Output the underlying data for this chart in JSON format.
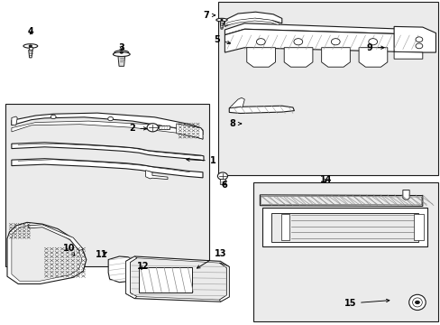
{
  "bg_color": "#ffffff",
  "box_fill": "#ebebeb",
  "line_color": "#1a1a1a",
  "lw_main": 0.8,
  "lw_thin": 0.4,
  "label_fs": 7,
  "boxes": {
    "b1": [
      0.01,
      0.18,
      0.475,
      0.68
    ],
    "b2": [
      0.495,
      0.46,
      0.995,
      0.995
    ],
    "b3": [
      0.575,
      0.01,
      0.995,
      0.44
    ]
  },
  "labels": {
    "1": [
      0.483,
      0.505,
      0.415,
      0.51
    ],
    "2": [
      0.3,
      0.605,
      0.34,
      0.605
    ],
    "3": [
      0.275,
      0.855,
      0.275,
      0.838
    ],
    "4": [
      0.068,
      0.905,
      0.068,
      0.888
    ],
    "5": [
      0.493,
      0.88,
      0.53,
      0.865
    ],
    "6": [
      0.508,
      0.43,
      0.508,
      0.442
    ],
    "7": [
      0.468,
      0.955,
      0.49,
      0.955
    ],
    "8": [
      0.528,
      0.62,
      0.555,
      0.62
    ],
    "9": [
      0.84,
      0.855,
      0.88,
      0.855
    ],
    "10": [
      0.155,
      0.235,
      0.17,
      0.21
    ],
    "11": [
      0.23,
      0.215,
      0.248,
      0.228
    ],
    "12": [
      0.325,
      0.178,
      0.315,
      0.162
    ],
    "13": [
      0.5,
      0.218,
      0.44,
      0.168
    ],
    "14": [
      0.74,
      0.448,
      0.74,
      0.43
    ],
    "15": [
      0.795,
      0.065,
      0.892,
      0.075
    ]
  }
}
